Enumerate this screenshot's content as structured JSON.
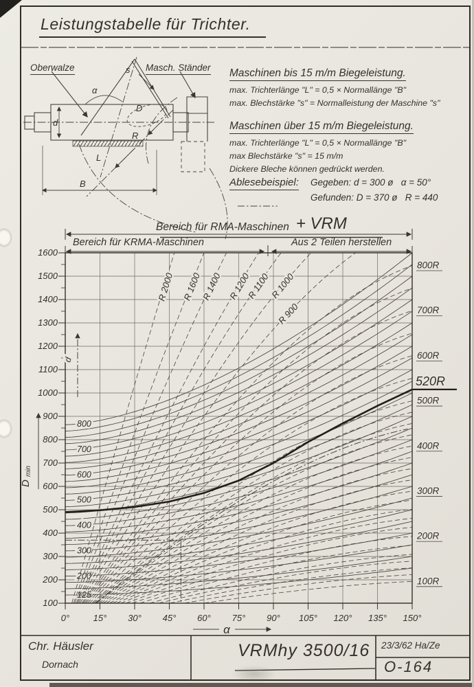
{
  "page": {
    "title": "Leistungstabelle für Trichter."
  },
  "diagram": {
    "label_top_roll": "Oberwalze",
    "label_stand": "Masch. Ständer",
    "dims": {
      "s": "s",
      "alpha": "α",
      "d": "d",
      "D": "D",
      "R": "R",
      "L": "L",
      "B": "B"
    }
  },
  "notes": [
    {
      "heading": "Maschinen bis 15 m/m Biegeleistung.",
      "lines": [
        "max. Trichterlänge \"L\" = 0,5 × Normallänge \"B\"",
        "max. Blechstärke \"s\" = Normalleistung der Maschine \"s\""
      ]
    },
    {
      "heading": "Maschinen über 15 m/m Biegeleistung.",
      "lines": [
        "max. Trichterlänge \"L\" = 0,5 × Normallänge \"B\"",
        "max Blechstärke \"s\" = 15 m/m",
        "Dickere Bleche können gedrückt werden."
      ]
    }
  ],
  "example_note": {
    "heading": "Ablesebeispiel:",
    "given": "Gegeben: d = 300 ø   α = 50°",
    "found": "Gefunden: D = 370 ø   R = 440"
  },
  "chart_headers": {
    "full_span": "Bereich für RMA-Maschinen",
    "full_span_added": "+ VRM",
    "left_span": "Bereich für KRMA-Maschinen",
    "right_span": "Aus 2 Teilen herstellen"
  },
  "chart_data": {
    "type": "line",
    "title": "Leistungstabelle für Trichter",
    "xlabel": "α",
    "ylabel": "D min",
    "xlim": [
      0,
      150
    ],
    "ylim": [
      100,
      1600
    ],
    "x_ticks": [
      0,
      15,
      30,
      45,
      60,
      75,
      90,
      105,
      120,
      135,
      150
    ],
    "x_tick_suffix": "°",
    "y_ticks": [
      100,
      200,
      300,
      400,
      500,
      600,
      700,
      800,
      900,
      1000,
      1100,
      1200,
      1300,
      1400,
      1500,
      1600
    ],
    "d_curves": {
      "description": "solid curves: small cone diameter d; D = d·(base + gain·(α/150)^power)",
      "axis_label": "d",
      "params": {
        "base": 1.08,
        "gain": 0.92,
        "power": 1.6
      },
      "values": [
        125,
        150,
        175,
        200,
        225,
        250,
        275,
        300,
        325,
        350,
        375,
        400,
        425,
        450,
        475,
        500,
        525,
        550,
        575,
        600,
        625,
        650,
        675,
        700,
        725,
        750,
        775,
        800
      ],
      "labeled": [
        800,
        700,
        600,
        500,
        400,
        300,
        200,
        125
      ]
    },
    "r_curves": {
      "description": "dashed curves: bending radius R; D = 2·R·sin(α/2)",
      "values": [
        100,
        115,
        130,
        145,
        160,
        180,
        200,
        220,
        240,
        260,
        280,
        300,
        325,
        350,
        375,
        400,
        425,
        450,
        475,
        500,
        550,
        600,
        650,
        700,
        750,
        800,
        900,
        1000,
        1100,
        1200,
        1400,
        1600,
        2000
      ],
      "diagonal_labels": [
        2000,
        1600,
        1400,
        1200,
        1100,
        1000,
        900
      ],
      "diagonal_label_prefix": "R ",
      "right_labels": [
        800,
        700,
        600,
        500,
        400,
        300,
        200,
        100
      ],
      "right_label_suffix": "R"
    },
    "highlight_curve": {
      "label": "520R",
      "points_alpha_D": [
        [
          0,
          490
        ],
        [
          15,
          498
        ],
        [
          30,
          512
        ],
        [
          45,
          535
        ],
        [
          60,
          572
        ],
        [
          75,
          625
        ],
        [
          90,
          700
        ],
        [
          105,
          790
        ],
        [
          120,
          870
        ],
        [
          135,
          945
        ],
        [
          150,
          1015
        ]
      ]
    },
    "example": {
      "given_d": 300,
      "given_alpha": 50,
      "found_D": 370,
      "found_R": 440
    }
  },
  "titleblock": {
    "company": "Chr. Häusler",
    "city": "Dornach",
    "drawing_title": "VRMhy 3500/16",
    "date_sig": "23/3/62 Ha/Ze",
    "number": "O-164"
  }
}
